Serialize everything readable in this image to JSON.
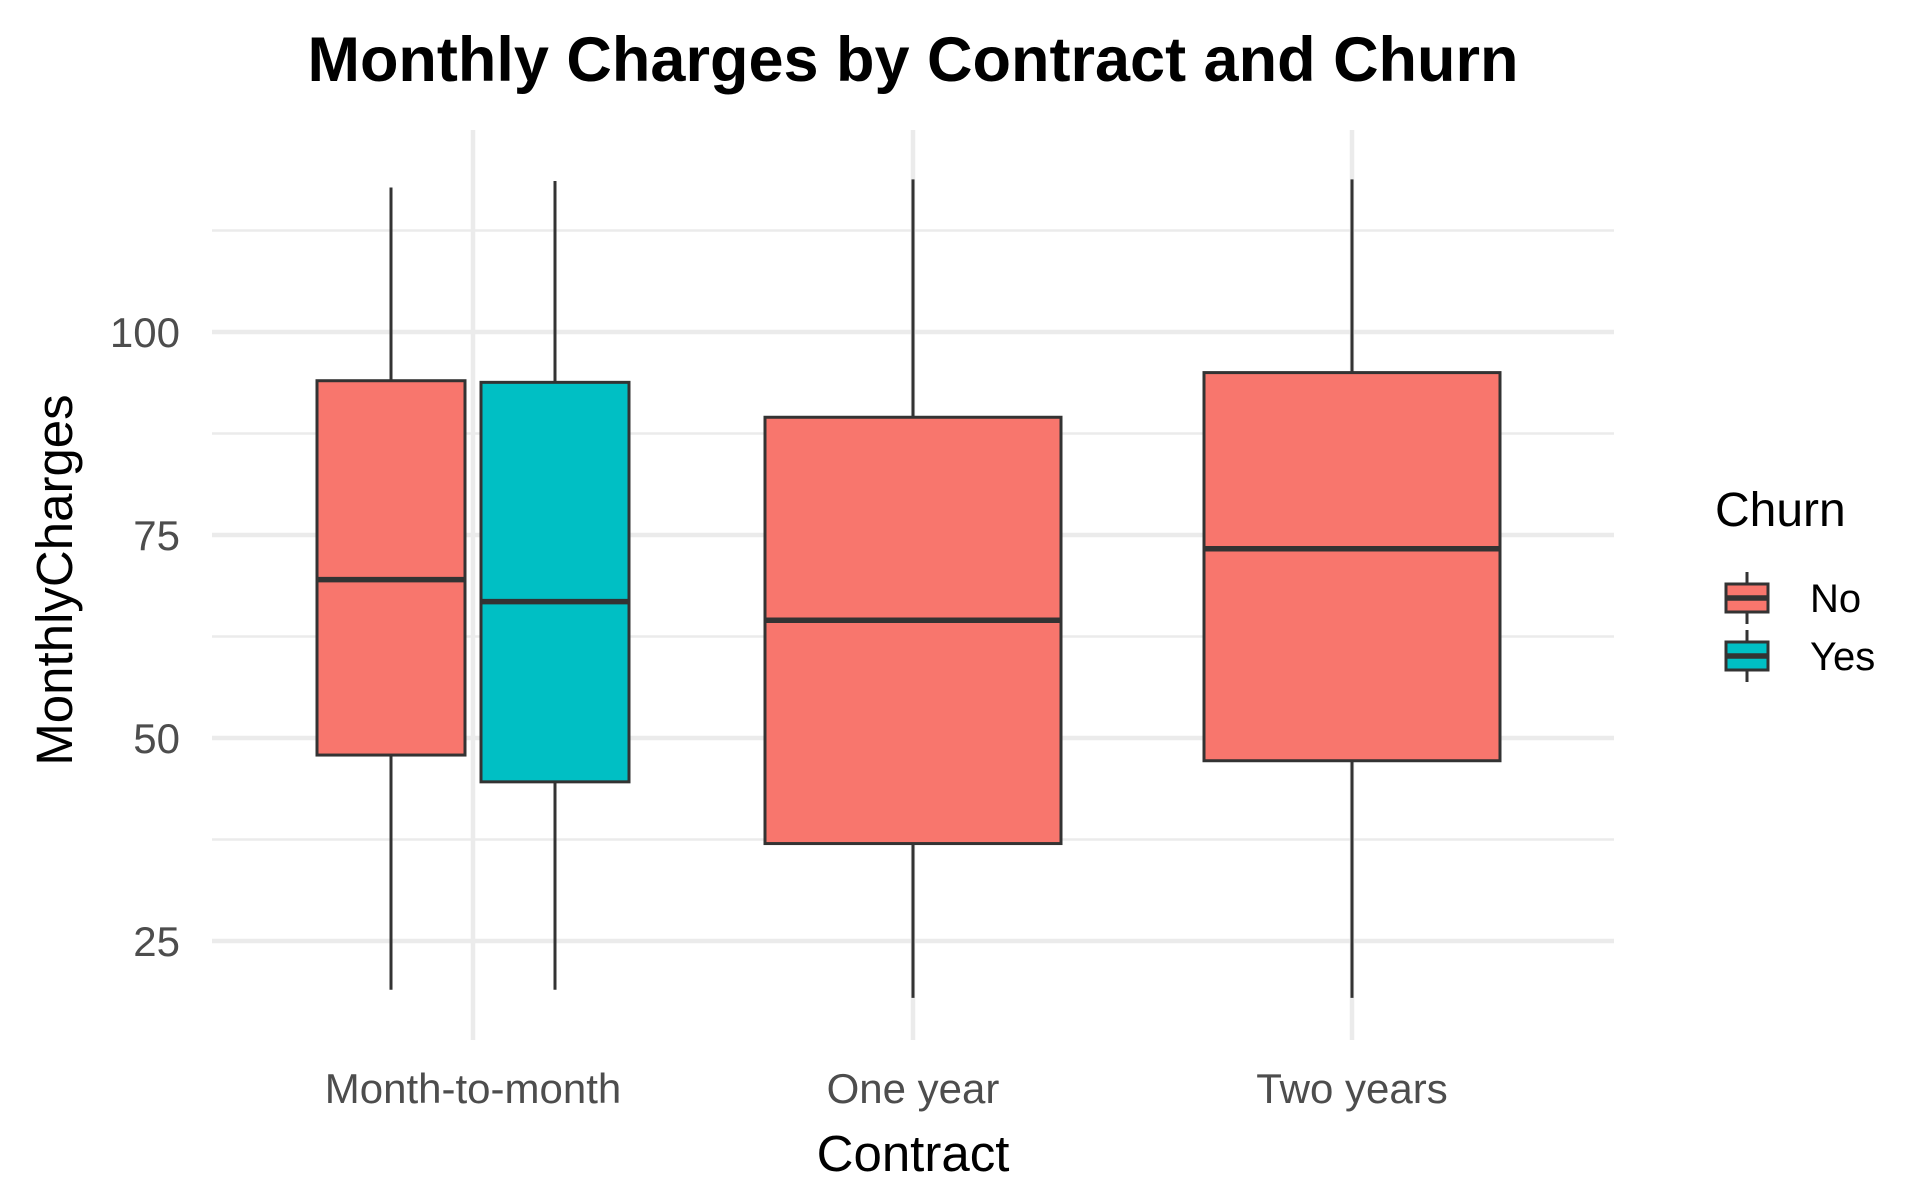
{
  "chart_data": {
    "type": "box",
    "title": "Monthly Charges by Contract and Churn",
    "xlabel": "Contract",
    "ylabel": "MonthlyCharges",
    "categories": [
      "Month-to-month",
      "One year",
      "Two years"
    ],
    "y_ticks": [
      "25",
      "50",
      "75",
      "100"
    ],
    "ylim": [
      13.5,
      124
    ],
    "grid": true,
    "legend": {
      "title": "Churn",
      "position": "right",
      "entries": [
        {
          "label": "No",
          "color": "#F8766D"
        },
        {
          "label": "Yes",
          "color": "#00BFC4"
        }
      ]
    },
    "series": [
      {
        "name": "No",
        "color": "#F8766D",
        "boxes": [
          {
            "category": "Month-to-month",
            "min": 19,
            "q1": 47.9,
            "median": 69.5,
            "q3": 94,
            "max": 117.8
          },
          {
            "category": "One year",
            "min": 18,
            "q1": 37,
            "median": 64.5,
            "q3": 89.5,
            "max": 118.8
          },
          {
            "category": "Two years",
            "min": 18,
            "q1": 47.2,
            "median": 73.3,
            "q3": 95,
            "max": 118.8
          }
        ]
      },
      {
        "name": "Yes",
        "color": "#00BFC4",
        "boxes": [
          {
            "category": "Month-to-month",
            "min": 19,
            "q1": 44.6,
            "median": 66.8,
            "q3": 93.8,
            "max": 118.6
          }
        ]
      }
    ]
  }
}
